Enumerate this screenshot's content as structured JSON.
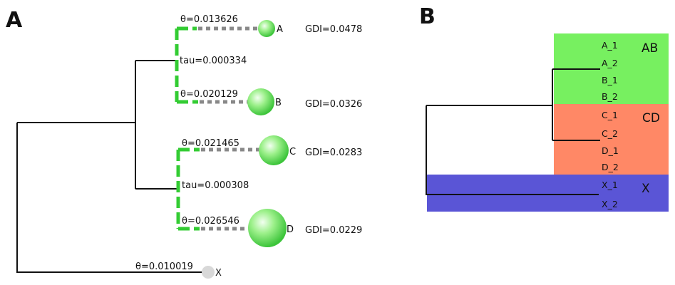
{
  "panels": {
    "a_letter": "A",
    "b_letter": "B"
  },
  "panel_a": {
    "colors": {
      "green": "#33cc33",
      "gray_dash": "#888888",
      "tree": "#111111",
      "outgroup": "#d8d8d8"
    },
    "leaves": [
      {
        "name": "A",
        "theta": "θ=0.013626",
        "gdi": "GDI=0.0478"
      },
      {
        "name": "B",
        "theta": "θ=0.020129",
        "gdi": "GDI=0.0326"
      },
      {
        "name": "C",
        "theta": "θ=0.021465",
        "gdi": "GDI=0.0283"
      },
      {
        "name": "D",
        "theta": "θ=0.026546",
        "gdi": "GDI=0.0229"
      },
      {
        "name": "X",
        "theta": "θ=0.010019",
        "gdi": ""
      }
    ],
    "taus": [
      {
        "clade": "AB",
        "label": "tau=0.000334"
      },
      {
        "clade": "CD",
        "label": "tau=0.000308"
      }
    ]
  },
  "panel_b": {
    "groups": [
      {
        "name": "AB",
        "color": "#77f060",
        "tips": [
          "A_1",
          "A_2",
          "B_1",
          "B_2"
        ]
      },
      {
        "name": "CD",
        "color": "#ff8866",
        "tips": [
          "C_1",
          "C_2",
          "D_1",
          "D_2"
        ]
      },
      {
        "name": "X",
        "color": "#5a55d6",
        "tips": [
          "X_1",
          "X_2"
        ]
      }
    ]
  }
}
